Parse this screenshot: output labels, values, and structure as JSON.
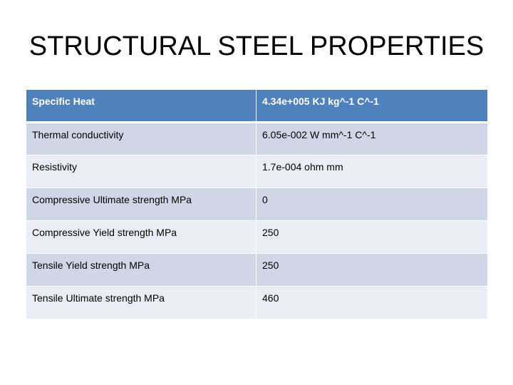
{
  "title": "STRUCTURAL STEEL PROPERTIES",
  "table": {
    "header": {
      "property": "Specific Heat",
      "value": "4.34e+005 KJ kg^-1 C^-1"
    },
    "rows": [
      {
        "property": "Thermal conductivity",
        "value": "6.05e-002 W mm^-1 C^-1"
      },
      {
        "property": "Resistivity",
        "value": "1.7e-004 ohm mm"
      },
      {
        "property": "Compressive Ultimate strength MPa",
        "value": "0"
      },
      {
        "property": "Compressive Yield strength MPa",
        "value": "250"
      },
      {
        "property": "Tensile Yield strength MPa",
        "value": "250"
      },
      {
        "property": "Tensile Ultimate strength MPa",
        "value": "460"
      }
    ]
  },
  "colors": {
    "header_bg": "#4f81bd",
    "row_dark": "#cfd7e7",
    "row_light": "#e9edf4"
  }
}
